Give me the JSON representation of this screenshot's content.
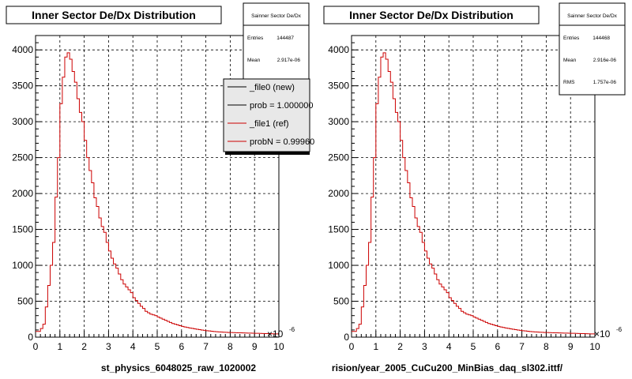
{
  "chart_data": [
    {
      "type": "line",
      "title": "Inner Sector De/Dx Distribution",
      "xlabel": "st_physics_6048025_raw_1020002",
      "x_exponent": "×10",
      "x_exponent_power": "-6",
      "xlim": [
        0,
        10
      ],
      "ylim": [
        0,
        4200
      ],
      "x_ticks": [
        "0",
        "1",
        "2",
        "3",
        "4",
        "5",
        "6",
        "7",
        "8",
        "9",
        "10"
      ],
      "y_ticks": [
        "0",
        "500",
        "1000",
        "1500",
        "2000",
        "2500",
        "3000",
        "3500",
        "4000"
      ],
      "grid": true,
      "stats": {
        "title": "Sainner Sector De/Dx",
        "rows": [
          {
            "label": "Entries",
            "value": "144487"
          },
          {
            "label": "Mean",
            "value": "2.917e-06"
          }
        ]
      },
      "legend": {
        "placement": "top-right",
        "entries": [
          {
            "label": "_file0 (new)",
            "color": "#000000"
          },
          {
            "label": "prob = 1.000000",
            "color": "#000000"
          },
          {
            "label": "_file1 (ref)",
            "color": "#cc0000"
          },
          {
            "label": "probN = 0.99960",
            "color": "#cc0000"
          }
        ]
      },
      "series": [
        {
          "color": "#cc0000",
          "bin_width": 0.1,
          "x_start": 0,
          "values": [
            80,
            80,
            120,
            180,
            420,
            720,
            1000,
            1320,
            1950,
            2500,
            3250,
            3620,
            3900,
            3960,
            3870,
            3700,
            3550,
            3320,
            3130,
            3000,
            2740,
            2500,
            2320,
            2150,
            1940,
            1820,
            1660,
            1540,
            1460,
            1320,
            1200,
            1100,
            1020,
            960,
            880,
            800,
            740,
            700,
            660,
            620,
            550,
            510,
            470,
            430,
            400,
            360,
            340,
            320,
            310,
            300,
            280,
            265,
            250,
            235,
            220,
            205,
            190,
            180,
            170,
            160,
            150,
            142,
            135,
            128,
            122,
            116,
            110,
            104,
            99,
            95,
            90,
            86,
            82,
            79,
            76,
            73,
            71,
            69,
            67,
            65,
            64,
            63,
            62,
            61,
            60,
            59,
            58,
            57,
            56,
            55,
            54,
            53,
            52,
            51,
            50,
            49,
            48,
            47,
            46,
            45
          ]
        }
      ]
    },
    {
      "type": "line",
      "title": "Inner Sector De/Dx Distribution",
      "xlabel": "rision/year_2005_CuCu200_MinBias_daq_sl302.ittf/",
      "x_exponent": "×10",
      "x_exponent_power": "-6",
      "xlim": [
        0,
        10
      ],
      "ylim": [
        0,
        4200
      ],
      "x_ticks": [
        "0",
        "1",
        "2",
        "3",
        "4",
        "5",
        "6",
        "7",
        "8",
        "9",
        "10"
      ],
      "y_ticks": [
        "0",
        "500",
        "1000",
        "1500",
        "2000",
        "2500",
        "3000",
        "3500",
        "4000"
      ],
      "grid": true,
      "stats": {
        "title": "Sainner Sector De/Dx",
        "rows": [
          {
            "label": "Entries",
            "value": "144468"
          },
          {
            "label": "Mean",
            "value": "2.916e-06"
          },
          {
            "label": "RMS",
            "value": "1.757e-06"
          }
        ]
      },
      "series": [
        {
          "color": "#cc0000",
          "bin_width": 0.1,
          "x_start": 0,
          "values": [
            80,
            80,
            120,
            180,
            420,
            720,
            1000,
            1320,
            1950,
            2500,
            3250,
            3620,
            3900,
            3960,
            3870,
            3700,
            3550,
            3320,
            3130,
            3000,
            2740,
            2500,
            2320,
            2150,
            1940,
            1820,
            1660,
            1540,
            1460,
            1320,
            1200,
            1100,
            1020,
            960,
            880,
            800,
            740,
            700,
            660,
            620,
            550,
            510,
            470,
            430,
            400,
            360,
            340,
            320,
            310,
            300,
            280,
            265,
            250,
            235,
            220,
            205,
            190,
            180,
            170,
            160,
            150,
            142,
            135,
            128,
            122,
            116,
            110,
            104,
            99,
            95,
            90,
            86,
            82,
            79,
            76,
            73,
            71,
            69,
            67,
            65,
            64,
            63,
            62,
            61,
            60,
            59,
            58,
            57,
            56,
            55,
            54,
            53,
            52,
            51,
            50,
            49,
            48,
            47,
            46,
            45
          ]
        }
      ]
    }
  ]
}
